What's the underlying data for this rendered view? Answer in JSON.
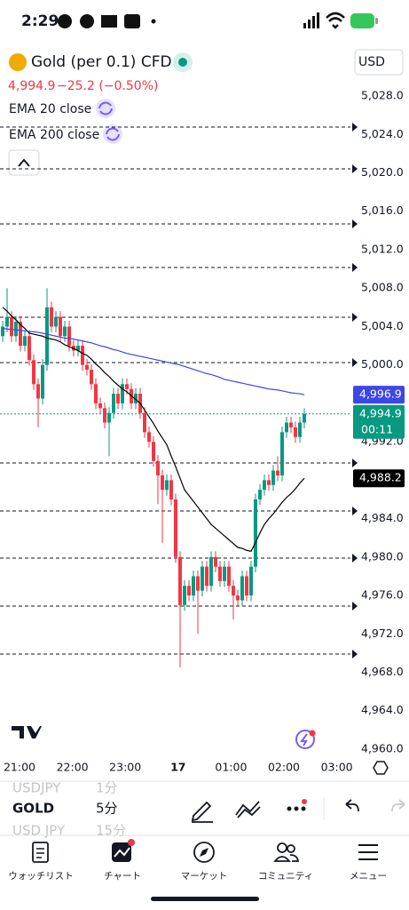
{
  "status_bar": {
    "time": "2:29"
  },
  "header": {
    "symbol": "Gold (per 0.1) CFD",
    "price": "4,994.9",
    "change": "−25.2 (−0.50%)",
    "currency": "USD"
  },
  "chart_data": {
    "type": "candlestick",
    "open": [
      5003,
      5004,
      5005,
      5003,
      5004.5,
      5002,
      5003,
      5000.5,
      4998,
      4996.5,
      5000,
      5006,
      5004,
      5005,
      5003,
      5004,
      5002,
      5001.5,
      5002,
      5000,
      4999.5,
      4998,
      4996,
      4995.5,
      4994,
      4995,
      4997,
      4996,
      4998,
      4997.5,
      4996,
      4997,
      4995,
      4993,
      4992,
      4990,
      4988.5,
      4987,
      4988,
      4986,
      4980,
      4975,
      4977,
      4976,
      4978,
      4976.5,
      4979,
      4977,
      4980,
      4979,
      4977.5,
      4979,
      4977,
      4976,
      4975.5,
      4978,
      4976,
      4979,
      4986,
      4987,
      4988,
      4987.5,
      4989,
      4988.5,
      4993,
      4994,
      4993.5,
      4992.5,
      4994
    ],
    "high": [
      5004.6,
      5008,
      5005.6,
      5005.1,
      5005.1,
      5003.6,
      5003.6,
      5001.1,
      4998.6,
      5000.6,
      5008,
      5006.6,
      5005.6,
      5005.6,
      5004.6,
      5004.6,
      5002.6,
      5002.6,
      5002.6,
      5000.6,
      5000.1,
      4998.6,
      4996.6,
      4996.1,
      4995.6,
      4997.6,
      4997.6,
      4998.6,
      4998.6,
      4998.1,
      4997.6,
      4997.6,
      4995.6,
      4993.6,
      4992.6,
      4990.6,
      4989.1,
      4988.6,
      4988.6,
      4986.6,
      4980.6,
      4977.6,
      4977.6,
      4978.6,
      4978.6,
      4979.6,
      4979.6,
      4980.6,
      4980.6,
      4979.6,
      4979.6,
      4979.6,
      4977.6,
      4976.6,
      4978.6,
      4978.6,
      4979.6,
      4986.6,
      4987.6,
      4988.6,
      4988.6,
      4989.6,
      4990.5,
      4993.6,
      4994.6,
      4994.6,
      4994.1,
      4994.6,
      4995.5
    ],
    "low": [
      5002.4,
      5003.4,
      5002.4,
      5002.4,
      5001.4,
      5001.4,
      4999.9,
      4997.4,
      4993.5,
      4995.9,
      4999.4,
      5003.4,
      5003.4,
      5002.4,
      5002.4,
      5001.4,
      5000.9,
      5000.9,
      4999.4,
      4998.9,
      4997.4,
      4995.4,
      4994.9,
      4993.4,
      4990.5,
      4994.4,
      4995.4,
      4995.4,
      4996.9,
      4995.4,
      4995.4,
      4994.4,
      4992.4,
      4991.4,
      4989.4,
      4985.5,
      4981.5,
      4986.4,
      4985.4,
      4979.4,
      4968.5,
      4974.4,
      4975.4,
      4975.4,
      4972,
      4975.9,
      4976.4,
      4976.4,
      4978.4,
      4976.9,
      4976.9,
      4976.4,
      4973.5,
      4974.9,
      4974.9,
      4975.4,
      4975.4,
      4978.4,
      4985.4,
      4986.4,
      4986.9,
      4986.9,
      4987.9,
      4987.9,
      4992.4,
      4992.9,
      4991.9,
      4991.9,
      4993.4
    ],
    "close": [
      5004,
      5005,
      5003,
      5004.5,
      5002,
      5003,
      5000.5,
      4998,
      4996.5,
      5000,
      5006,
      5004,
      5005,
      5003,
      5004,
      5002,
      5001.5,
      5002,
      5000,
      4999.5,
      4998,
      4996,
      4995.5,
      4994,
      4995,
      4997,
      4996,
      4998,
      4997.5,
      4996,
      4997,
      4995,
      4993,
      4992,
      4990,
      4988.5,
      4987,
      4988,
      4986,
      4980,
      4975,
      4977,
      4976,
      4978,
      4976.5,
      4979,
      4977,
      4980,
      4979,
      4977.5,
      4979,
      4977,
      4976,
      4975.5,
      4978,
      4976,
      4979,
      4986,
      4987,
      4988,
      4987.5,
      4989,
      4988.5,
      4993,
      4994,
      4993.5,
      4992.5,
      4994,
      4994.9
    ],
    "up_color": "#089981",
    "down_color": "#f23645",
    "close_label": "4,994.9",
    "countdown": "00:11",
    "series": [
      {
        "name": "EMA 20 close",
        "color": "#000000",
        "value_label": "4,988.2",
        "values": [
          5006,
          5005.6,
          5005.1,
          5004.7,
          5004.2,
          5003.8,
          5003.3,
          5003.2,
          5003.1,
          5003.0,
          5002.8,
          5002.7,
          5002.6,
          5002.4,
          5002.1,
          5001.9,
          5001.7,
          5001.5,
          5001.2,
          5001.0,
          5000.6,
          5000.1,
          4999.7,
          4999.2,
          4998.8,
          4998.3,
          4997.9,
          4997.5,
          4997.2,
          4996.8,
          4996.4,
          4996.0,
          4995.3,
          4994.6,
          4993.9,
          4993.1,
          4992.4,
          4991.7,
          4990.5,
          4989.4,
          4988.2,
          4987.0,
          4986.4,
          4985.8,
          4985.2,
          4984.6,
          4984.0,
          4983.4,
          4983.0,
          4982.6,
          4982.2,
          4981.8,
          4981.4,
          4981.0,
          4980.9,
          4980.7,
          4980.6,
          4981.5,
          4982.5,
          4983.4,
          4984.0,
          4984.5,
          4985.1,
          4985.7,
          4986.2,
          4986.6,
          4987.1,
          4987.7,
          4988.2
        ]
      },
      {
        "name": "EMA 200 close",
        "color": "#3d47e6",
        "value_label": "4,996.9",
        "values": [
          5003.8,
          5003.75,
          5003.7,
          5003.65,
          5003.6,
          5003.55,
          5003.5,
          5003.45,
          5003.4,
          5003.3,
          5003.2,
          5003.1,
          5003.0,
          5002.9,
          5002.8,
          5002.75,
          5002.7,
          5002.6,
          5002.5,
          5002.4,
          5002.3,
          5002.15,
          5002.0,
          5001.9,
          5001.75,
          5001.6,
          5001.5,
          5001.35,
          5001.2,
          5001.1,
          5001.0,
          5000.9,
          5000.8,
          5000.7,
          5000.6,
          5000.5,
          5000.4,
          5000.3,
          5000.2,
          5000.1,
          5000.0,
          4999.85,
          4999.7,
          4999.55,
          4999.4,
          4999.25,
          4999.1,
          4999.0,
          4998.85,
          4998.7,
          4998.5,
          4998.4,
          4998.3,
          4998.2,
          4998.1,
          4998.0,
          4997.9,
          4997.8,
          4997.7,
          4997.6,
          4997.5,
          4997.45,
          4997.4,
          4997.3,
          4997.2,
          4997.1,
          4997.05,
          4997.0,
          4996.9
        ]
      }
    ],
    "ylim": [
      4959.35,
      5029.67
    ],
    "yticks": [
      {
        "value": 5028,
        "label": "5,028.0"
      },
      {
        "value": 5024,
        "label": "5,024.0"
      },
      {
        "value": 5020,
        "label": "5,020.0"
      },
      {
        "value": 5016,
        "label": "5,016.0"
      },
      {
        "value": 5012,
        "label": "5,012.0"
      },
      {
        "value": 5008,
        "label": "5,008.0"
      },
      {
        "value": 5004,
        "label": "5,004.0"
      },
      {
        "value": 5000,
        "label": "5,000.0"
      },
      {
        "value": 4992,
        "label": "4,992.0"
      },
      {
        "value": 4984,
        "label": "4,984.0"
      },
      {
        "value": 4980,
        "label": "4,980.0"
      },
      {
        "value": 4976,
        "label": "4,976.0"
      },
      {
        "value": 4972,
        "label": "4,972.0"
      },
      {
        "value": 4968,
        "label": "4,968.0"
      },
      {
        "value": 4964,
        "label": "4,964.0"
      },
      {
        "value": 4960,
        "label": "4,960.0"
      }
    ],
    "xtick_labels": [
      "21:00",
      "22:00",
      "23:00",
      "17",
      "01:00",
      "02:00",
      "03:00"
    ]
  },
  "toolbar": {
    "symbols": [
      {
        "symbol": "USDJPY",
        "interval": "1分"
      },
      {
        "symbol": "GOLD",
        "interval": "5分"
      },
      {
        "symbol": "USD JPY",
        "interval": "15分"
      }
    ]
  },
  "tabs": [
    "ウォッチリスト",
    "チャート",
    "マーケット",
    "コミュニティ",
    "メニュー"
  ]
}
